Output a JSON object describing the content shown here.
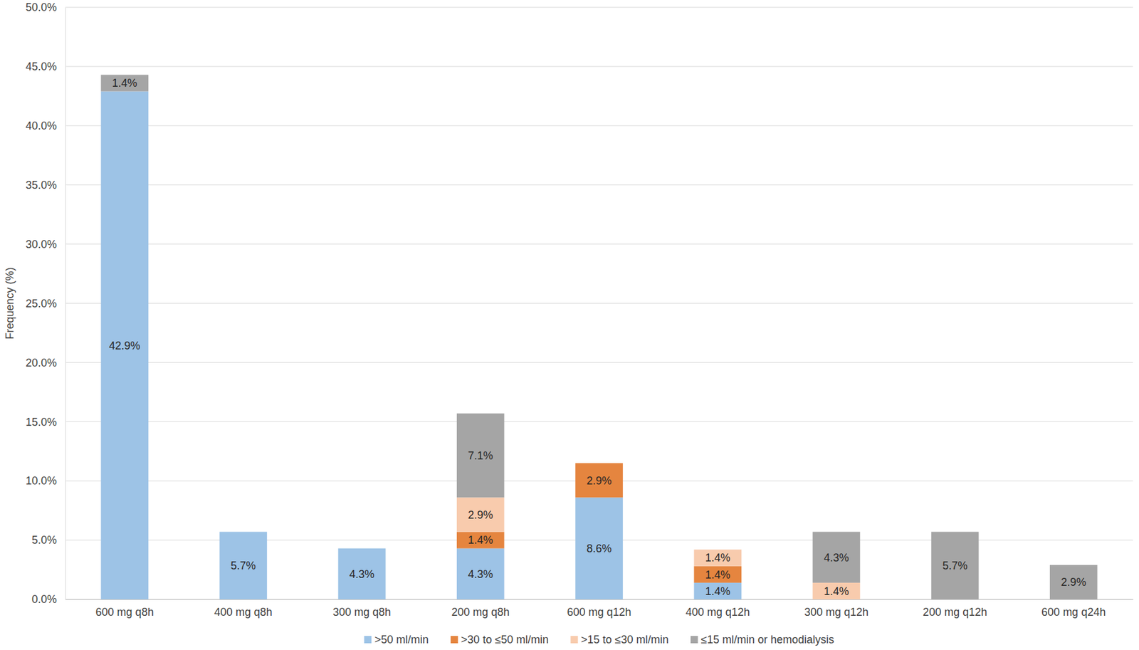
{
  "chart_data": {
    "type": "bar",
    "stacked": true,
    "data_labels": true,
    "grid": true,
    "legend": "bottom",
    "ylabel": "Frequency (%)",
    "categories": [
      "600 mg q8h",
      "400 mg q8h",
      "300 mg q8h",
      "200 mg q8h",
      "600 mg q12h",
      "400 mg q12h",
      "300 mg q12h",
      "200 mg q12h",
      "600 mg q24h"
    ],
    "ylim": [
      0,
      50
    ],
    "yticks": [
      {
        "value": 0,
        "label": "0.0%"
      },
      {
        "value": 5,
        "label": "5.0%"
      },
      {
        "value": 10,
        "label": "10.0%"
      },
      {
        "value": 15,
        "label": "15.0%"
      },
      {
        "value": 20,
        "label": "20.0%"
      },
      {
        "value": 25,
        "label": "25.0%"
      },
      {
        "value": 30,
        "label": "30.0%"
      },
      {
        "value": 35,
        "label": "35.0%"
      },
      {
        "value": 40,
        "label": "40.0%"
      },
      {
        "value": 45,
        "label": "45.0%"
      },
      {
        "value": 50,
        "label": "50.0%"
      }
    ],
    "series": [
      {
        "name": ">50 ml/min",
        "color": "#9dc3e6",
        "values": [
          42.9,
          5.7,
          4.3,
          4.3,
          8.6,
          1.4,
          null,
          null,
          null
        ],
        "value_labels": [
          "42.9%",
          "5.7%",
          "4.3%",
          "4.3%",
          "8.6%",
          "1.4%",
          null,
          null,
          null
        ]
      },
      {
        "name": ">30 to ≤50 ml/min",
        "color": "#e5853f",
        "values": [
          null,
          null,
          null,
          1.4,
          2.9,
          1.4,
          null,
          null,
          null
        ],
        "value_labels": [
          null,
          null,
          null,
          "1.4%",
          "2.9%",
          "1.4%",
          null,
          null,
          null
        ]
      },
      {
        "name": ">15 to ≤30 ml/min",
        "color": "#f8cbad",
        "values": [
          null,
          null,
          null,
          2.9,
          null,
          1.4,
          1.4,
          null,
          null
        ],
        "value_labels": [
          null,
          null,
          null,
          "2.9%",
          null,
          "1.4%",
          "1.4%",
          null,
          null
        ]
      },
      {
        "name": "≤15 ml/min or hemodialysis",
        "color": "#a5a5a5",
        "values": [
          1.4,
          null,
          null,
          7.1,
          null,
          null,
          4.3,
          5.7,
          2.9
        ],
        "value_labels": [
          "1.4%",
          null,
          null,
          "7.1%",
          null,
          null,
          "4.3%",
          "5.7%",
          "2.9%"
        ]
      }
    ]
  }
}
